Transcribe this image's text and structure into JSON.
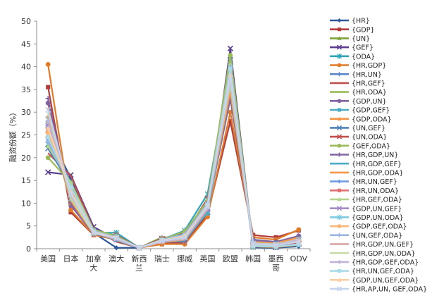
{
  "chart_data": {
    "type": "line",
    "ylabel": "融资份额（%）",
    "ylim": [
      0,
      50
    ],
    "yticks": [
      0,
      5,
      10,
      15,
      20,
      25,
      30,
      35,
      40,
      45,
      50
    ],
    "categories": [
      "美国",
      "日本",
      "加拿大",
      "澳大",
      "新西兰",
      "瑞士",
      "挪威",
      "英国",
      "欧盟",
      "韩国",
      "墨西哥",
      "ODV"
    ],
    "grid": false,
    "legend_position": "right",
    "series": [
      {
        "name": "{HR}",
        "color": "#2e5a9c",
        "marker": "diamond",
        "values": [
          25.5,
          15.5,
          3.5,
          0.2,
          0.2,
          1.5,
          1.0,
          9.0,
          38.0,
          0.3,
          0.2,
          0.5
        ]
      },
      {
        "name": "{GDP}",
        "color": "#b23b3b",
        "marker": "square",
        "values": [
          35.5,
          8.0,
          3.0,
          2.0,
          0.2,
          1.0,
          1.5,
          7.5,
          28.0,
          3.0,
          2.5,
          4.0
        ]
      },
      {
        "name": "{UN}",
        "color": "#7fa33b",
        "marker": "triangle",
        "approx": true,
        "values": [
          28.0,
          11.0,
          3.5,
          2.5,
          0.2,
          2.5,
          2.5,
          10.0,
          38.0,
          1.5,
          1.0,
          1.5
        ]
      },
      {
        "name": "{GEF}",
        "color": "#5d3f8f",
        "marker": "x",
        "approx": true,
        "values": [
          16.8,
          16.2,
          4.8,
          2.0,
          0.2,
          2.0,
          3.5,
          8.0,
          44.0,
          0.4,
          0.3,
          1.0
        ]
      },
      {
        "name": "{ODA}",
        "color": "#2fa6b8",
        "marker": "star",
        "approx": true,
        "values": [
          23.0,
          13.0,
          3.5,
          3.5,
          0.2,
          2.0,
          4.0,
          12.0,
          40.0,
          0.5,
          0.5,
          1.0
        ]
      },
      {
        "name": "{HR,GDP}",
        "color": "#e07b2a",
        "marker": "circle",
        "approx": true,
        "values": [
          40.5,
          8.5,
          3.0,
          2.0,
          0.2,
          1.0,
          1.0,
          7.0,
          30.0,
          2.5,
          2.0,
          4.2
        ]
      },
      {
        "name": "{HR,UN}",
        "color": "#5b87c9",
        "marker": "plus",
        "approx": true,
        "values": [
          27.0,
          13.0,
          3.6,
          2.2,
          0.2,
          2.0,
          1.8,
          9.5,
          38.0,
          0.8,
          0.7,
          1.0
        ]
      },
      {
        "name": "{HR,GEF}",
        "color": "#c0504d",
        "marker": "none",
        "approx": true,
        "values": [
          21.0,
          16.0,
          4.2,
          1.5,
          0.2,
          1.8,
          2.2,
          8.5,
          41.0,
          0.5,
          0.3,
          0.8
        ]
      },
      {
        "name": "{HR,ODA}",
        "color": "#9bbb59",
        "marker": "none",
        "approx": true,
        "values": [
          24.0,
          14.0,
          3.6,
          2.5,
          0.2,
          1.8,
          2.5,
          10.5,
          39.0,
          0.5,
          0.4,
          0.8
        ]
      },
      {
        "name": "{GDP,UN}",
        "color": "#8064a2",
        "marker": "circle",
        "approx": true,
        "values": [
          32.0,
          9.5,
          3.2,
          2.2,
          0.2,
          1.8,
          2.0,
          8.8,
          33.0,
          2.0,
          1.5,
          2.8
        ]
      },
      {
        "name": "{GDP,GEF}",
        "color": "#4bacc6",
        "marker": "square",
        "approx": true,
        "values": [
          26.0,
          12.0,
          3.8,
          2.0,
          0.2,
          1.5,
          2.5,
          7.8,
          36.0,
          1.5,
          1.2,
          2.5
        ]
      },
      {
        "name": "{GDP,ODA}",
        "color": "#f79646",
        "marker": "triangle",
        "approx": true,
        "values": [
          29.0,
          10.0,
          3.3,
          2.8,
          0.2,
          1.5,
          2.8,
          10.0,
          34.0,
          1.6,
          1.3,
          2.5
        ]
      },
      {
        "name": "{UN,GEF}",
        "color": "#4f81bd",
        "marker": "x",
        "approx": true,
        "values": [
          22.0,
          14.0,
          4.0,
          2.2,
          0.2,
          2.2,
          3.0,
          9.0,
          41.5,
          0.8,
          0.6,
          1.2
        ]
      },
      {
        "name": "{UN,ODA}",
        "color": "#c0504d",
        "marker": "x",
        "approx": true,
        "values": [
          25.0,
          12.0,
          3.5,
          3.0,
          0.2,
          2.2,
          3.2,
          11.0,
          39.5,
          0.8,
          0.7,
          1.2
        ]
      },
      {
        "name": "{GEF,ODA}",
        "color": "#9bbb59",
        "marker": "circle",
        "approx": true,
        "values": [
          20.0,
          14.5,
          4.2,
          2.8,
          0.2,
          2.0,
          3.8,
          10.5,
          42.5,
          0.5,
          0.4,
          1.0
        ]
      },
      {
        "name": "{HR,GDP,UN}",
        "color": "#8064a2",
        "marker": "plus",
        "approx": true,
        "values": [
          33.0,
          10.0,
          3.3,
          2.0,
          0.2,
          1.5,
          1.5,
          8.5,
          33.0,
          1.8,
          1.4,
          2.8
        ]
      },
      {
        "name": "{HR,GDP,GEF}",
        "color": "#4bacc6",
        "marker": "none",
        "approx": true,
        "values": [
          30.0,
          11.5,
          3.6,
          1.8,
          0.2,
          1.4,
          1.8,
          8.0,
          35.0,
          1.5,
          1.2,
          2.5
        ]
      },
      {
        "name": "{HR,GDP,ODA}",
        "color": "#f79646",
        "marker": "none",
        "approx": true,
        "values": [
          31.0,
          10.5,
          3.3,
          2.4,
          0.2,
          1.4,
          2.0,
          9.2,
          34.5,
          1.5,
          1.2,
          2.5
        ]
      },
      {
        "name": "{HR,UN,GEF}",
        "color": "#6f9be0",
        "marker": "diamond",
        "approx": true,
        "values": [
          24.0,
          14.5,
          4.0,
          2.0,
          0.2,
          2.0,
          2.4,
          9.0,
          40.0,
          0.7,
          0.5,
          1.0
        ]
      },
      {
        "name": "{HR,UN,ODA}",
        "color": "#e07070",
        "marker": "square",
        "approx": true,
        "values": [
          26.0,
          13.0,
          3.6,
          2.6,
          0.2,
          2.0,
          2.6,
          10.0,
          38.5,
          0.7,
          0.6,
          1.0
        ]
      },
      {
        "name": "{HR,GEF,ODA}",
        "color": "#b5d38a",
        "marker": "triangle",
        "approx": true,
        "values": [
          22.5,
          14.5,
          4.0,
          2.5,
          0.2,
          1.8,
          2.8,
          9.8,
          40.5,
          0.5,
          0.4,
          0.9
        ]
      },
      {
        "name": "{GDP,UN,GEF}",
        "color": "#a58bc7",
        "marker": "x",
        "approx": true,
        "values": [
          27.0,
          12.0,
          3.7,
          2.2,
          0.2,
          1.8,
          2.6,
          8.6,
          37.0,
          1.2,
          1.0,
          2.0
        ]
      },
      {
        "name": "{GDP,UN,ODA}",
        "color": "#7ccbe0",
        "marker": "star",
        "approx": true,
        "values": [
          28.5,
          11.0,
          3.4,
          2.6,
          0.2,
          1.8,
          2.8,
          9.8,
          36.0,
          1.2,
          1.0,
          2.0
        ]
      },
      {
        "name": "{GDP,GEF,ODA}",
        "color": "#f9b67a",
        "marker": "circle",
        "approx": true,
        "values": [
          25.5,
          12.5,
          3.8,
          2.4,
          0.2,
          1.6,
          3.0,
          9.4,
          38.0,
          1.0,
          0.9,
          1.8
        ]
      },
      {
        "name": "{UN,GEF,ODA}",
        "color": "#9ab6e0",
        "marker": "plus",
        "approx": true,
        "values": [
          23.5,
          13.5,
          3.9,
          2.5,
          0.2,
          2.0,
          3.2,
          10.0,
          40.0,
          0.6,
          0.5,
          1.0
        ]
      },
      {
        "name": "{HR,GDP,UN,GEF}",
        "color": "#d9a0a0",
        "marker": "none",
        "approx": true,
        "values": [
          29.0,
          11.5,
          3.5,
          2.0,
          0.2,
          1.6,
          2.0,
          8.6,
          36.5,
          1.2,
          1.0,
          2.0
        ]
      },
      {
        "name": "{HR,GDP,UN,ODA}",
        "color": "#c6dba5",
        "marker": "none",
        "approx": true,
        "values": [
          30.0,
          11.0,
          3.4,
          2.4,
          0.2,
          1.6,
          2.2,
          9.4,
          36.0,
          1.2,
          1.0,
          2.0
        ]
      },
      {
        "name": "{HR,GDP,GEF,ODA}",
        "color": "#c2b1d8",
        "marker": "diamond",
        "approx": true,
        "values": [
          28.0,
          12.0,
          3.6,
          2.2,
          0.2,
          1.5,
          2.4,
          9.0,
          37.0,
          1.1,
          0.9,
          1.9
        ]
      },
      {
        "name": "{HR,UN,GEF,ODA}",
        "color": "#a9dbe8",
        "marker": "square",
        "approx": true,
        "values": [
          24.5,
          13.5,
          3.8,
          2.4,
          0.2,
          1.9,
          2.8,
          9.6,
          39.5,
          0.6,
          0.5,
          0.9
        ]
      },
      {
        "name": "{GDP,UN,GEF,ODA}",
        "color": "#fbcfa5",
        "marker": "triangle",
        "approx": true,
        "values": [
          26.5,
          12.5,
          3.6,
          2.4,
          0.2,
          1.8,
          2.8,
          9.4,
          38.0,
          1.0,
          0.8,
          1.6
        ]
      },
      {
        "name": "{HR,AP,UN, GEF,ODA}",
        "color": "#c4d3ee",
        "marker": "x",
        "values": [
          30.5,
          12.0,
          3.5,
          2.3,
          0.2,
          1.7,
          2.5,
          9.2,
          37.5,
          1.0,
          0.8,
          1.5
        ]
      }
    ]
  }
}
